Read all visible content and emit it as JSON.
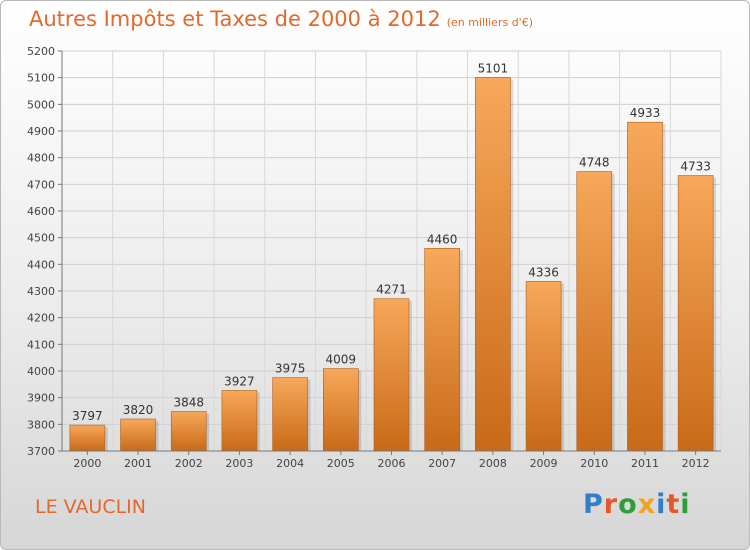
{
  "header": {
    "title": "Autres Impôts et Taxes de 2000 à 2012",
    "subtitle": "(en milliers d'€)"
  },
  "footer": {
    "location": "LE VAUCLIN",
    "brand": "Proxiti"
  },
  "colors": {
    "bar_light": "#f7a85a",
    "bar_dark": "#c86a18",
    "title": "#e3692a"
  },
  "chart_data": {
    "type": "bar",
    "title": "Autres Impôts et Taxes de 2000 à 2012",
    "subtitle": "(en milliers d'€)",
    "xlabel": "",
    "ylabel": "",
    "categories": [
      "2000",
      "2001",
      "2002",
      "2003",
      "2004",
      "2005",
      "2006",
      "2007",
      "2008",
      "2009",
      "2010",
      "2011",
      "2012"
    ],
    "values": [
      3797,
      3820,
      3848,
      3927,
      3975,
      4009,
      4271,
      4460,
      5101,
      4336,
      4748,
      4933,
      4733
    ],
    "ylim": [
      3700,
      5200
    ],
    "yticks": [
      3700,
      3800,
      3900,
      4000,
      4100,
      4200,
      4300,
      4400,
      4500,
      4600,
      4700,
      4800,
      4900,
      5000,
      5100,
      5200
    ],
    "grid": true,
    "legend": "none"
  }
}
